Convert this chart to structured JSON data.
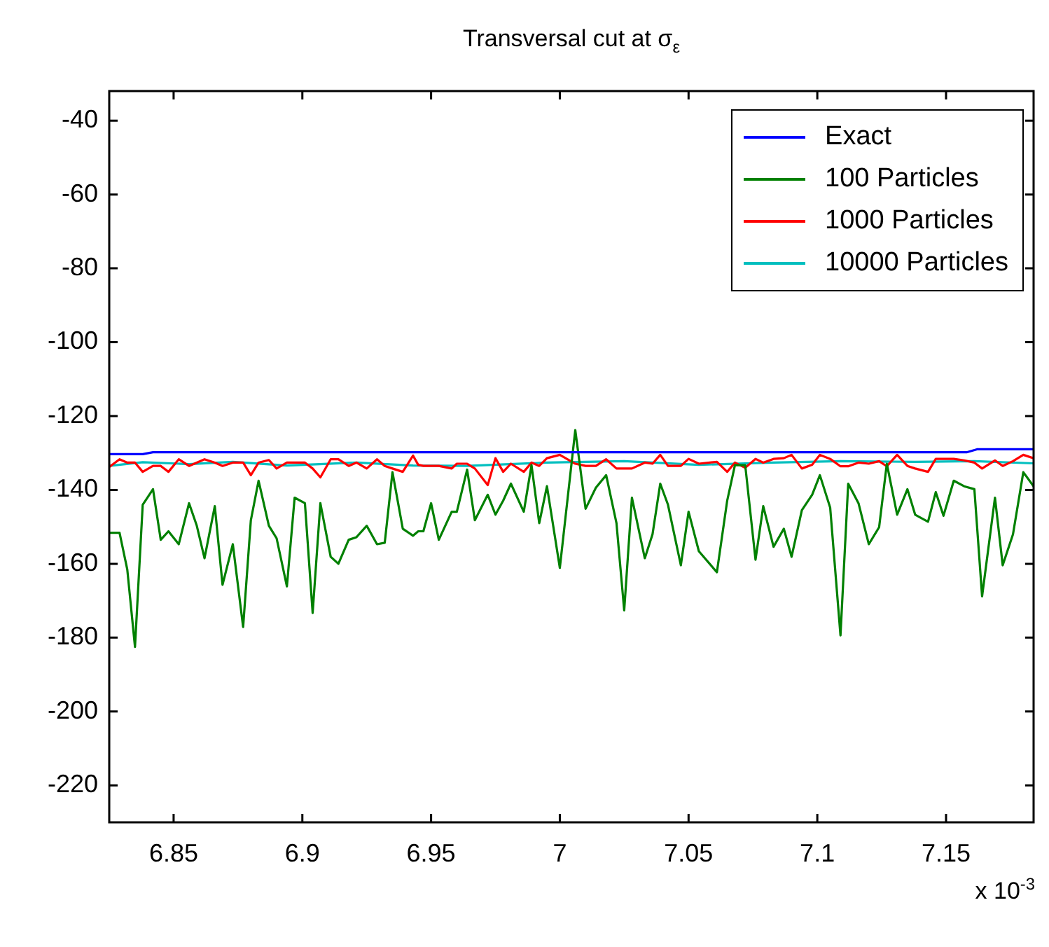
{
  "chart_data": {
    "type": "line",
    "title": "Transversal cut at σ$_{ε}$",
    "xlim": [
      6.825,
      7.184
    ],
    "xticks": [
      6.85,
      6.9,
      6.95,
      7,
      7.05,
      7.1,
      7.15
    ],
    "ylim": [
      -230,
      -32
    ],
    "yticks": [
      -220,
      -200,
      -180,
      -160,
      -140,
      -120,
      -100,
      -80,
      -60,
      -40
    ],
    "grid": false,
    "legend": "top right",
    "marker": "none",
    "line_style": "solid",
    "annotations": [
      "x 10$^{-3}$"
    ],
    "series": [
      {
        "name": "Exact",
        "color": "#0000ff",
        "x": [
          6.825,
          6.838,
          6.842,
          7.158,
          7.162,
          7.184
        ],
        "values": [
          -130.3,
          -130.3,
          -129.8,
          -129.8,
          -129,
          -129
        ]
      },
      {
        "name": "100 Particles",
        "color": "#008000",
        "x": [
          6.825,
          6.829,
          6.832,
          6.835,
          6.838,
          6.842,
          6.845,
          6.848,
          6.852,
          6.856,
          6.859,
          6.862,
          6.866,
          6.869,
          6.873,
          6.877,
          6.88,
          6.883,
          6.887,
          6.89,
          6.894,
          6.897,
          6.901,
          6.904,
          6.907,
          6.911,
          6.914,
          6.918,
          6.921,
          6.925,
          6.929,
          6.932,
          6.935,
          6.939,
          6.943,
          6.945,
          6.947,
          6.95,
          6.953,
          6.958,
          6.96,
          6.964,
          6.967,
          6.972,
          6.975,
          6.978,
          6.981,
          6.986,
          6.989,
          6.992,
          6.995,
          7.0,
          7.006,
          7.01,
          7.014,
          7.018,
          7.022,
          7.025,
          7.028,
          7.033,
          7.036,
          7.039,
          7.042,
          7.047,
          7.05,
          7.054,
          7.061,
          7.065,
          7.068,
          7.072,
          7.076,
          7.079,
          7.083,
          7.087,
          7.09,
          7.094,
          7.098,
          7.101,
          7.105,
          7.109,
          7.112,
          7.116,
          7.12,
          7.124,
          7.127,
          7.131,
          7.135,
          7.138,
          7.143,
          7.146,
          7.149,
          7.153,
          7.157,
          7.161,
          7.164,
          7.169,
          7.172,
          7.176,
          7.18,
          7.184
        ],
        "values": [
          -151.6,
          -151.6,
          -161.5,
          -182.5,
          -144,
          -139.8,
          -153.5,
          -151.2,
          -154.7,
          -143.6,
          -149.7,
          -158.5,
          -144.4,
          -165.7,
          -154.7,
          -177.1,
          -148.2,
          -137.5,
          -149.7,
          -153.1,
          -166.1,
          -142.1,
          -143.6,
          -173.3,
          -143.6,
          -158.1,
          -160,
          -153.5,
          -152.8,
          -149.7,
          -154.7,
          -154.3,
          -135.2,
          -150.5,
          -152.4,
          -151.2,
          -151.2,
          -143.6,
          -153.5,
          -145.9,
          -145.9,
          -134.5,
          -148.2,
          -141.3,
          -146.7,
          -142.9,
          -138.3,
          -145.9,
          -133.3,
          -149,
          -139,
          -161.1,
          -123.8,
          -145.1,
          -139.4,
          -136,
          -149,
          -172.6,
          -142.1,
          -158.5,
          -152,
          -138.3,
          -144,
          -160.4,
          -145.9,
          -156.6,
          -162.3,
          -142.9,
          -133.3,
          -133.3,
          -158.9,
          -144.4,
          -155.4,
          -150.5,
          -158.1,
          -145.5,
          -141.3,
          -136,
          -144.8,
          -179.4,
          -138.3,
          -143.6,
          -154.7,
          -150.1,
          -132.9,
          -146.7,
          -139.8,
          -146.7,
          -148.6,
          -140.6,
          -147,
          -137.5,
          -139,
          -139.8,
          -168.8,
          -142.1,
          -160.4,
          -152,
          -135.2,
          -139
        ]
      },
      {
        "name": "1000 Particles",
        "color": "#ff0000",
        "x": [
          6.825,
          6.829,
          6.832,
          6.835,
          6.838,
          6.842,
          6.845,
          6.848,
          6.852,
          6.856,
          6.859,
          6.862,
          6.866,
          6.869,
          6.873,
          6.877,
          6.88,
          6.883,
          6.887,
          6.89,
          6.894,
          6.897,
          6.901,
          6.904,
          6.907,
          6.911,
          6.914,
          6.918,
          6.921,
          6.925,
          6.929,
          6.932,
          6.935,
          6.939,
          6.943,
          6.945,
          6.947,
          6.95,
          6.953,
          6.958,
          6.96,
          6.964,
          6.967,
          6.972,
          6.975,
          6.978,
          6.981,
          6.986,
          6.989,
          6.992,
          6.995,
          7.0,
          7.006,
          7.01,
          7.014,
          7.018,
          7.022,
          7.025,
          7.028,
          7.033,
          7.036,
          7.039,
          7.042,
          7.047,
          7.05,
          7.054,
          7.061,
          7.065,
          7.068,
          7.072,
          7.076,
          7.079,
          7.083,
          7.087,
          7.09,
          7.094,
          7.098,
          7.101,
          7.105,
          7.109,
          7.112,
          7.116,
          7.12,
          7.124,
          7.127,
          7.131,
          7.135,
          7.138,
          7.143,
          7.146,
          7.149,
          7.153,
          7.157,
          7.161,
          7.164,
          7.169,
          7.172,
          7.176,
          7.18,
          7.184
        ],
        "values": [
          -133.8,
          -131.7,
          -132.6,
          -132.6,
          -135.1,
          -133.5,
          -133.5,
          -135.1,
          -131.7,
          -133.5,
          -132.6,
          -131.7,
          -132.6,
          -133.5,
          -132.6,
          -132.6,
          -136,
          -132.6,
          -131.9,
          -134.2,
          -132.6,
          -132.6,
          -132.6,
          -134.2,
          -136.6,
          -131.7,
          -131.7,
          -133.5,
          -132.6,
          -134.2,
          -131.7,
          -133.5,
          -134.2,
          -135.1,
          -130.7,
          -133.2,
          -133.5,
          -133.5,
          -133.5,
          -134.2,
          -132.9,
          -132.9,
          -134.2,
          -138.7,
          -131.4,
          -135.1,
          -132.9,
          -135.1,
          -132.6,
          -133.5,
          -131.4,
          -130.5,
          -132.9,
          -133.5,
          -133.5,
          -131.7,
          -134.2,
          -134.2,
          -134.2,
          -132.6,
          -132.9,
          -130.5,
          -133.5,
          -133.5,
          -131.6,
          -132.9,
          -132.4,
          -135.1,
          -132.6,
          -134,
          -131.6,
          -132.6,
          -131.6,
          -131.4,
          -130.5,
          -134.2,
          -133.2,
          -130.5,
          -131.6,
          -133.6,
          -133.6,
          -132.6,
          -132.9,
          -132.2,
          -133.6,
          -130.5,
          -133.5,
          -134.2,
          -135.1,
          -131.6,
          -131.6,
          -131.6,
          -132,
          -132.6,
          -134.2,
          -132,
          -133.5,
          -132.2,
          -130.5,
          -131.4
        ]
      },
      {
        "name": "10000 Particles",
        "color": "#00bfbf",
        "x": [
          6.825,
          6.838,
          6.856,
          6.873,
          6.894,
          6.921,
          6.943,
          6.964,
          6.995,
          7.025,
          7.054,
          7.083,
          7.109,
          7.138,
          7.161,
          7.184
        ],
        "values": [
          -133.5,
          -132.5,
          -133,
          -132.4,
          -133.4,
          -132.6,
          -133.4,
          -133.5,
          -132.6,
          -132.2,
          -133.2,
          -132.6,
          -132.2,
          -132.4,
          -132.2,
          -132.8
        ]
      }
    ]
  }
}
